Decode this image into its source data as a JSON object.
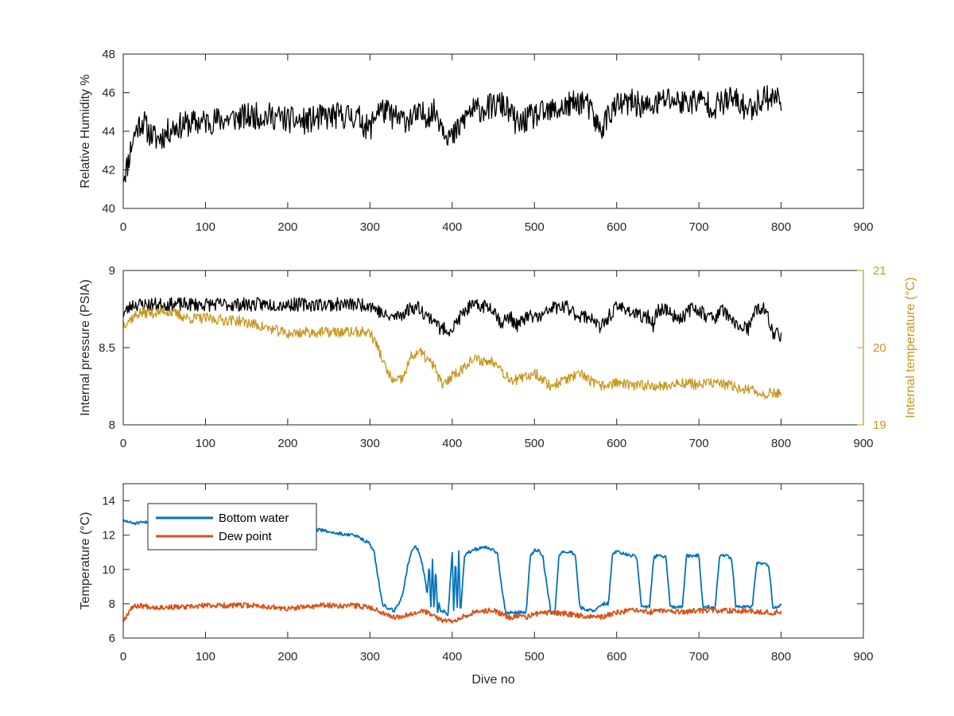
{
  "figure": {
    "background": "#ffffff",
    "axis_color": "#262626",
    "tick_label_color": "#262626"
  },
  "chart_data": [
    {
      "type": "line",
      "xlabel": "",
      "ylabel": "Relative Humidity %",
      "xlim": [
        0,
        900
      ],
      "ylim": [
        40,
        48
      ],
      "xticks": [
        0,
        100,
        200,
        300,
        400,
        500,
        600,
        700,
        800,
        900
      ],
      "yticks": [
        40,
        42,
        44,
        46,
        48
      ],
      "grid": false,
      "series": [
        {
          "color": "#000000",
          "noise": 0.7,
          "seed": 11,
          "x": [
            0,
            5,
            10,
            15,
            20,
            25,
            30,
            40,
            50,
            60,
            80,
            100,
            120,
            140,
            160,
            180,
            200,
            220,
            240,
            260,
            280,
            290,
            295,
            300,
            305,
            310,
            320,
            330,
            340,
            360,
            380,
            390,
            400,
            410,
            420,
            440,
            460,
            470,
            480,
            490,
            500,
            520,
            540,
            560,
            570,
            580,
            590,
            600,
            620,
            640,
            660,
            680,
            700,
            720,
            740,
            760,
            780,
            800
          ],
          "y": [
            41.7,
            42.2,
            43.3,
            44.0,
            44.4,
            44.5,
            44.0,
            43.6,
            43.8,
            44.2,
            44.4,
            44.5,
            44.6,
            44.7,
            44.8,
            44.8,
            44.6,
            44.5,
            44.7,
            44.8,
            44.8,
            44.6,
            44.2,
            44.1,
            44.7,
            45.2,
            45.0,
            44.7,
            44.6,
            44.8,
            45.0,
            44.2,
            43.6,
            44.3,
            45.0,
            45.2,
            45.4,
            45.0,
            44.3,
            44.6,
            44.8,
            45.0,
            45.3,
            45.6,
            44.9,
            44.0,
            44.9,
            45.3,
            45.5,
            45.2,
            45.7,
            45.5,
            45.6,
            45.3,
            45.7,
            45.1,
            45.8,
            45.7
          ]
        }
      ]
    },
    {
      "type": "line",
      "xlabel": "",
      "ylabel": "Internal pressure (PSIA)",
      "y2label": "Internal temperature (°C)",
      "xlim": [
        0,
        900
      ],
      "ylim": [
        8,
        9
      ],
      "y2lim": [
        19,
        21
      ],
      "xticks": [
        0,
        100,
        200,
        300,
        400,
        500,
        600,
        700,
        800,
        900
      ],
      "yticks": [
        8,
        8.5,
        9
      ],
      "y2ticks": [
        19,
        20,
        21
      ],
      "y2_color": "#c8961e",
      "grid": false,
      "series": [
        {
          "axis": "left",
          "color": "#000000",
          "noise": 0.045,
          "seed": 23,
          "x": [
            0,
            8,
            10,
            300,
            310,
            320,
            330,
            340,
            350,
            360,
            370,
            380,
            385,
            390,
            400,
            410,
            420,
            430,
            440,
            450,
            455,
            460,
            470,
            480,
            490,
            500,
            510,
            520,
            530,
            540,
            550,
            560,
            570,
            575,
            580,
            590,
            600,
            610,
            620,
            630,
            640,
            645,
            650,
            660,
            670,
            680,
            690,
            700,
            710,
            720,
            730,
            740,
            750,
            760,
            770,
            780,
            790,
            800
          ],
          "y": [
            8.72,
            8.76,
            8.78,
            8.78,
            8.74,
            8.7,
            8.7,
            8.72,
            8.76,
            8.76,
            8.7,
            8.68,
            8.62,
            8.62,
            8.62,
            8.7,
            8.76,
            8.77,
            8.77,
            8.76,
            8.7,
            8.66,
            8.7,
            8.64,
            8.7,
            8.7,
            8.7,
            8.76,
            8.76,
            8.76,
            8.72,
            8.7,
            8.7,
            8.66,
            8.62,
            8.7,
            8.76,
            8.76,
            8.72,
            8.7,
            8.7,
            8.64,
            8.75,
            8.75,
            8.7,
            8.7,
            8.75,
            8.75,
            8.7,
            8.7,
            8.75,
            8.66,
            8.64,
            8.62,
            8.75,
            8.75,
            8.6,
            8.58
          ]
        },
        {
          "axis": "right",
          "color": "#c8961e",
          "noise": 0.07,
          "seed": 37,
          "x": [
            0,
            10,
            20,
            30,
            40,
            50,
            60,
            80,
            100,
            120,
            140,
            160,
            180,
            200,
            220,
            240,
            260,
            280,
            290,
            300,
            305,
            310,
            315,
            320,
            330,
            340,
            350,
            360,
            370,
            380,
            385,
            390,
            400,
            410,
            420,
            430,
            440,
            450,
            455,
            460,
            470,
            480,
            490,
            500,
            520,
            540,
            560,
            570,
            580,
            600,
            620,
            640,
            660,
            680,
            700,
            720,
            740,
            760,
            780,
            800
          ],
          "y": [
            20.3,
            20.38,
            20.45,
            20.45,
            20.45,
            20.48,
            20.45,
            20.38,
            20.38,
            20.36,
            20.35,
            20.3,
            20.24,
            20.18,
            20.2,
            20.2,
            20.2,
            20.2,
            20.2,
            20.2,
            20.1,
            20.0,
            19.85,
            19.7,
            19.55,
            19.6,
            19.88,
            19.95,
            19.85,
            19.72,
            19.58,
            19.5,
            19.65,
            19.7,
            19.82,
            19.85,
            19.82,
            19.82,
            19.82,
            19.7,
            19.6,
            19.58,
            19.62,
            19.68,
            19.5,
            19.6,
            19.65,
            19.55,
            19.5,
            19.55,
            19.5,
            19.52,
            19.5,
            19.55,
            19.52,
            19.55,
            19.5,
            19.45,
            19.4,
            19.42
          ]
        }
      ]
    },
    {
      "type": "line",
      "xlabel": "Dive no",
      "ylabel": "Temperature (°C)",
      "xlim": [
        0,
        900
      ],
      "ylim": [
        6,
        15
      ],
      "xticks": [
        0,
        100,
        200,
        300,
        400,
        500,
        600,
        700,
        800,
        900
      ],
      "yticks": [
        6,
        8,
        10,
        12,
        14
      ],
      "grid": false,
      "legend": "top-left",
      "series": [
        {
          "name": "Bottom water",
          "color": "#0072bd",
          "noise": 0.1,
          "seed": 51,
          "x": [
            0,
            5,
            10,
            20,
            40,
            60,
            100,
            140,
            180,
            220,
            240,
            260,
            280,
            290,
            300,
            305,
            310,
            315,
            320,
            330,
            340,
            345,
            350,
            355,
            360,
            365,
            370,
            372,
            374,
            376,
            378,
            380,
            382,
            384,
            386,
            388,
            390,
            395,
            400,
            402,
            404,
            406,
            408,
            410,
            415,
            420,
            425,
            430,
            440,
            445,
            450,
            455,
            460,
            465,
            470,
            480,
            490,
            495,
            500,
            505,
            510,
            520,
            525,
            530,
            535,
            540,
            545,
            550,
            555,
            560,
            565,
            570,
            575,
            580,
            585,
            590,
            595,
            600,
            605,
            610,
            615,
            620,
            625,
            630,
            635,
            640,
            645,
            650,
            655,
            660,
            665,
            670,
            675,
            680,
            685,
            690,
            695,
            700,
            705,
            710,
            715,
            720,
            725,
            730,
            735,
            740,
            745,
            750,
            755,
            760,
            765,
            770,
            775,
            780,
            785,
            790,
            795,
            800
          ],
          "y": [
            12.8,
            12.8,
            12.7,
            12.7,
            12.8,
            12.8,
            12.8,
            12.7,
            12.6,
            12.4,
            12.3,
            12.1,
            12.0,
            11.8,
            11.5,
            11.0,
            9.5,
            8.0,
            7.8,
            7.6,
            8.5,
            10.0,
            11.0,
            11.4,
            11.0,
            10.0,
            8.5,
            10.5,
            7.5,
            10.5,
            7.5,
            10.4,
            7.4,
            8.0,
            7.5,
            7.5,
            7.6,
            7.3,
            11.0,
            7.3,
            11.0,
            7.3,
            11.0,
            7.4,
            10.8,
            11.0,
            11.1,
            11.2,
            11.3,
            11.2,
            11.1,
            11.0,
            9.0,
            7.5,
            7.5,
            7.5,
            7.5,
            10.8,
            11.1,
            11.1,
            10.8,
            7.5,
            7.5,
            10.9,
            11.0,
            11.0,
            11.0,
            10.8,
            7.8,
            7.7,
            7.6,
            7.6,
            7.7,
            7.8,
            8.0,
            8.0,
            10.9,
            11.0,
            11.0,
            10.9,
            10.8,
            10.8,
            10.6,
            7.8,
            7.8,
            7.8,
            10.7,
            10.8,
            10.8,
            10.7,
            7.8,
            7.8,
            7.8,
            7.8,
            10.8,
            10.8,
            10.8,
            10.8,
            7.8,
            7.8,
            7.8,
            7.8,
            10.8,
            10.8,
            10.8,
            10.6,
            7.8,
            7.8,
            7.8,
            7.8,
            7.8,
            10.3,
            10.4,
            10.3,
            10.2,
            7.8,
            7.8,
            7.9
          ]
        },
        {
          "name": "Dew point",
          "color": "#d95319",
          "noise": 0.15,
          "seed": 67,
          "x": [
            0,
            5,
            10,
            20,
            40,
            60,
            80,
            100,
            120,
            140,
            160,
            180,
            200,
            220,
            240,
            260,
            280,
            300,
            310,
            320,
            330,
            340,
            350,
            360,
            370,
            380,
            390,
            400,
            410,
            420,
            430,
            440,
            450,
            460,
            470,
            480,
            490,
            500,
            520,
            540,
            560,
            580,
            600,
            620,
            640,
            660,
            680,
            700,
            720,
            740,
            760,
            780,
            800
          ],
          "y": [
            7.0,
            7.4,
            7.8,
            7.9,
            7.8,
            7.8,
            7.8,
            7.9,
            7.9,
            7.9,
            7.9,
            7.8,
            7.7,
            7.8,
            7.9,
            7.9,
            7.9,
            7.8,
            7.6,
            7.4,
            7.2,
            7.3,
            7.4,
            7.6,
            7.5,
            7.2,
            7.0,
            7.0,
            7.2,
            7.4,
            7.5,
            7.6,
            7.6,
            7.4,
            7.2,
            7.3,
            7.2,
            7.4,
            7.5,
            7.4,
            7.3,
            7.2,
            7.5,
            7.6,
            7.5,
            7.6,
            7.5,
            7.6,
            7.6,
            7.6,
            7.6,
            7.5,
            7.5
          ]
        }
      ]
    }
  ]
}
